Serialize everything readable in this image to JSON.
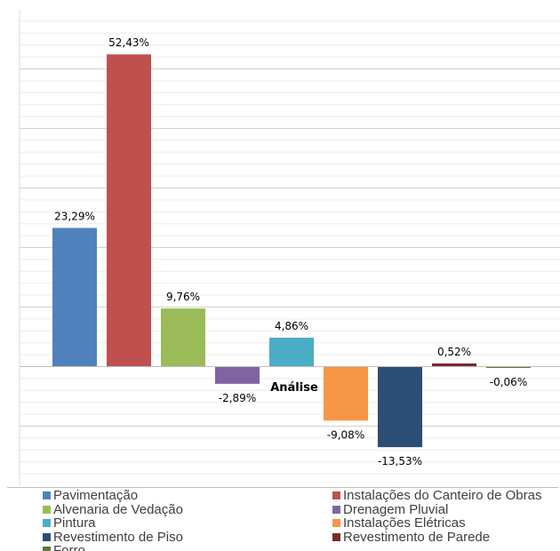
{
  "chart_data": {
    "type": "bar",
    "xlabel": "Análise",
    "categories": [
      "Pavimentação",
      "Instalações do Canteiro de Obras",
      "Alvenaria de Vedação",
      "Drenagem Pluvial",
      "Pintura",
      "Instalações Elétricas",
      "Revestimento de Piso",
      "Revestimento de Parede",
      "Forro"
    ],
    "values": [
      23.29,
      52.43,
      9.76,
      -2.89,
      4.86,
      -9.08,
      -13.53,
      0.52,
      -0.06
    ],
    "data_labels": [
      "23,29%",
      "52,43%",
      "9,76%",
      "-2,89%",
      "4,86%",
      "-9,08%",
      "-13,53%",
      "0,52%",
      "-0,06%"
    ],
    "colors": [
      "#4f81bd",
      "#c0504d",
      "#9bbb59",
      "#8064a2",
      "#4bacc6",
      "#f79646",
      "#2c4d75",
      "#772c2a",
      "#5f7530"
    ],
    "ylim": [
      -20,
      60
    ],
    "grid": true,
    "legend_position": "bottom"
  }
}
